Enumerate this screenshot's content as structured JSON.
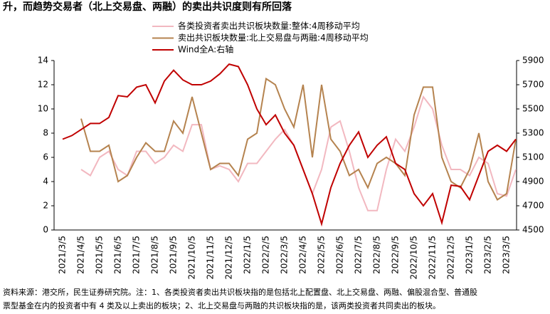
{
  "chart_data": {
    "type": "line",
    "title": "升，而趋势交易者（北上交易盘、两融）的卖出共识度则有所回落",
    "notes": [
      "资料来源：港交所，民生证券研究院。注：1、各类投资者卖出共识板块指的是包括北上配置盘、北上交易盘、两融、偏股混合型、普通股",
      "票型基金在内的投资者中有 4 类及以上卖出的板块；2、北上交易盘与两融的共识板块指的是，该两类投资者共同卖出的板块。"
    ],
    "categories": [
      "2021/3/5",
      null,
      "2021/4/5",
      null,
      "2021/5/5",
      null,
      "2021/6/5",
      null,
      "2021/7/5",
      null,
      "2021/8/5",
      null,
      "2021/9/5",
      null,
      "2021/10/5",
      null,
      "2021/11/5",
      null,
      "2021/12/5",
      null,
      "2022/1/5",
      null,
      "2022/2/5",
      null,
      "2022/3/5",
      null,
      "2022/4/5",
      null,
      "2022/5/5",
      null,
      "2022/6/5",
      null,
      "2022/7/5",
      null,
      "2022/8/5",
      null,
      "2022/9/5",
      null,
      "2022/10/5",
      null,
      "2022/11/5",
      null,
      "2022/12/5",
      null,
      "2023/1/5",
      null,
      "2023/2/5",
      null,
      "2023/3/5",
      null
    ],
    "series": [
      {
        "name": "各类投资者卖出共识板块数量:整体:4周移动平均",
        "color": "#f2b8c0",
        "values": [
          null,
          null,
          5,
          4.5,
          6,
          6.5,
          5,
          4.5,
          6.5,
          6.5,
          5.5,
          6,
          7,
          6.5,
          8.7,
          8.7,
          5,
          5.3,
          5,
          4,
          5.5,
          5.5,
          6.5,
          7.5,
          8.3,
          7,
          5,
          3,
          5,
          8.5,
          9,
          6.5,
          3.5,
          1.6,
          1.6,
          5,
          7.5,
          6.5,
          8.5,
          11,
          10,
          7,
          5,
          5,
          4.5,
          6,
          5.5,
          3,
          2.8,
          5
        ]
      },
      {
        "name": "卖出共识板块数量:北上交易盘与两融:4周移动平均",
        "color": "#b5834f",
        "values": [
          null,
          null,
          9.2,
          6.5,
          6.5,
          7,
          4,
          4.5,
          6,
          7.2,
          6.5,
          6.5,
          9,
          8,
          11,
          8,
          5,
          5.5,
          5.5,
          4.5,
          7.5,
          8,
          12.5,
          12,
          10,
          8.5,
          12,
          6,
          12,
          7.5,
          6.5,
          4.5,
          5,
          3.5,
          5.5,
          6,
          5.5,
          4.5,
          9.5,
          11.8,
          11.8,
          6,
          4,
          3.5,
          5,
          8,
          4,
          2.5,
          3,
          7.5
        ]
      },
      {
        "name": "Wind全A:右轴",
        "color": "#c00000",
        "axis": "y2",
        "values": [
          5250,
          5280,
          5330,
          5380,
          5380,
          5430,
          5610,
          5600,
          5680,
          5700,
          5550,
          5730,
          5820,
          5740,
          5700,
          5700,
          5730,
          5790,
          5870,
          5850,
          5700,
          5500,
          5370,
          5450,
          5300,
          5200,
          5000,
          4800,
          4550,
          4850,
          5050,
          5200,
          5310,
          5100,
          5200,
          5270,
          5050,
          5000,
          4800,
          4700,
          4800,
          4560,
          4870,
          4860,
          4750,
          4950,
          5150,
          5200,
          5150,
          5250
        ]
      }
    ],
    "ylim": [
      0,
      14
    ],
    "yticks": [
      0,
      2,
      4,
      6,
      8,
      10,
      12,
      14
    ],
    "y2lim": [
      4500,
      5900
    ],
    "y2ticks": [
      4500,
      4700,
      4900,
      5100,
      5300,
      5500,
      5700,
      5900
    ]
  }
}
